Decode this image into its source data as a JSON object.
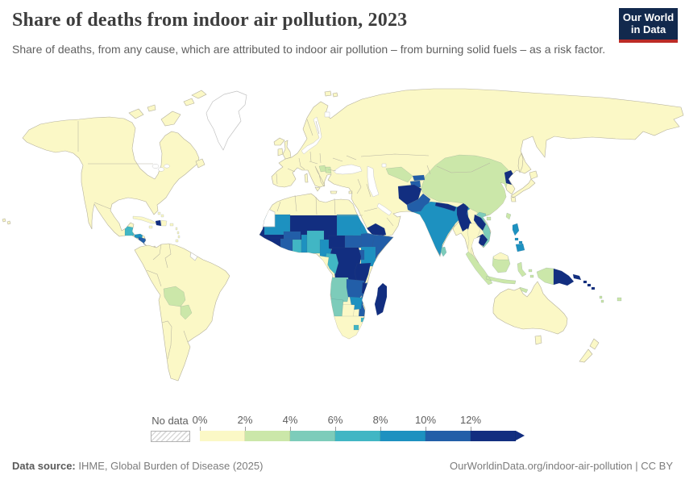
{
  "header": {
    "title": "Share of deaths from indoor air pollution, 2023",
    "logo_line1": "Our World",
    "logo_line2": "in Data",
    "logo_bg": "#12294d",
    "logo_stripe": "#bc2b26"
  },
  "subtitle": "Share of deaths, from any cause, which are attributed to indoor air pollution – from burning solid fuels – as a risk factor.",
  "legend": {
    "no_data_label": "No data",
    "tick_labels": [
      "0%",
      "2%",
      "4%",
      "6%",
      "8%",
      "10%",
      "12%"
    ],
    "bins": [
      "#fbf8c6",
      "#cbe7a9",
      "#7dccba",
      "#41b6c4",
      "#1d91c0",
      "#225ea8",
      "#122e80"
    ],
    "no_data_color": "#ffffff"
  },
  "map": {
    "ocean": "#ffffff",
    "palette": {
      "no_data": "#ffffff",
      "b1": "#fbf8c6",
      "b2": "#cbe7a9",
      "b3": "#7dccba",
      "b4": "#41b6c4",
      "b5": "#1d91c0",
      "b6": "#225ea8",
      "b7": "#122e80"
    },
    "countries": {
      "north_america": "b1",
      "arctic_islands": "b1",
      "greenland": "no_data",
      "iceland": "b1",
      "newfoundland": "b1",
      "hawaii": "b1",
      "guatemala": "b4",
      "belize": "b2",
      "honduras": "b5",
      "el_salvador": "b5",
      "nicaragua": "b6",
      "cuba": "b1",
      "haiti": "b7",
      "dominican_republic": "b1",
      "jamaica": "b1",
      "puerto_rico": "b1",
      "bahamas": "b1",
      "antilles": "b1",
      "south_america": "b1",
      "bolivia": "b2",
      "paraguay": "b2",
      "french_guiana": "no_data",
      "eurasia": "b1",
      "uk": "b1",
      "ireland": "b1",
      "corsica_sardinia": "b1",
      "sicily": "b1",
      "crete": "b1",
      "cyprus": "b1",
      "svalbard": "b1",
      "bosnia": "b2",
      "serbia": "b2",
      "uzbekistan": "b2",
      "kyrgyzstan": "b6",
      "tajikistan": "b6",
      "afghanistan": "b7",
      "pakistan": "b6",
      "india": "b5",
      "nepal": "b7",
      "bhutan": "b5",
      "bangladesh": "b6",
      "sri_lanka": "b3",
      "myanmar": "b7",
      "thailand": "b1",
      "laos": "b7",
      "vietnam": "b3",
      "cambodia": "b7",
      "china_mongolia": "b2",
      "north_korea": "b7",
      "taiwan": "b2",
      "hainan": "b2",
      "japan": "b1",
      "sakhalin": "b1",
      "philippines": "b5",
      "indonesia": "b2",
      "malaysia_borneo": "b1",
      "papua_new_guinea": "b7",
      "solomon_islands": "b7",
      "vanuatu": "b2",
      "fiji": "b2",
      "australia": "b1",
      "new_zealand": "b1",
      "yemen": "b7",
      "africa": "b1",
      "western_sahara": "no_data",
      "mauritania": "b5",
      "sahel_band": "b7",
      "sudan": "b5",
      "eritrea": "b5",
      "djibouti": "b5",
      "west_coast_band": "b7",
      "burkina_faso": "b6",
      "ivory_coast": "b6",
      "ghana": "b4",
      "togo_benin": "b5",
      "nigeria": "b4",
      "cameroon": "b5",
      "central_african_republic": "b7",
      "south_sudan": "b6",
      "ethiopia": "b6",
      "somalia": "b6",
      "kenya": "b5",
      "uganda": "b6",
      "drc": "b7",
      "congo": "b4",
      "gabon": "b1",
      "tanzania": "b7",
      "angola": "b3",
      "zambia": "b6",
      "mozambique": "b6",
      "malawi": "b7",
      "zimbabwe": "b5",
      "botswana": "b1",
      "namibia": "b3",
      "south_africa": "b1",
      "lesotho": "b4",
      "eswatini": "b4",
      "madagascar": "b7"
    }
  },
  "footer": {
    "source_label": "Data source:",
    "source_text": " IHME, Global Burden of Disease (2025)",
    "link_text": "OurWorldinData.org/indoor-air-pollution | CC BY"
  }
}
